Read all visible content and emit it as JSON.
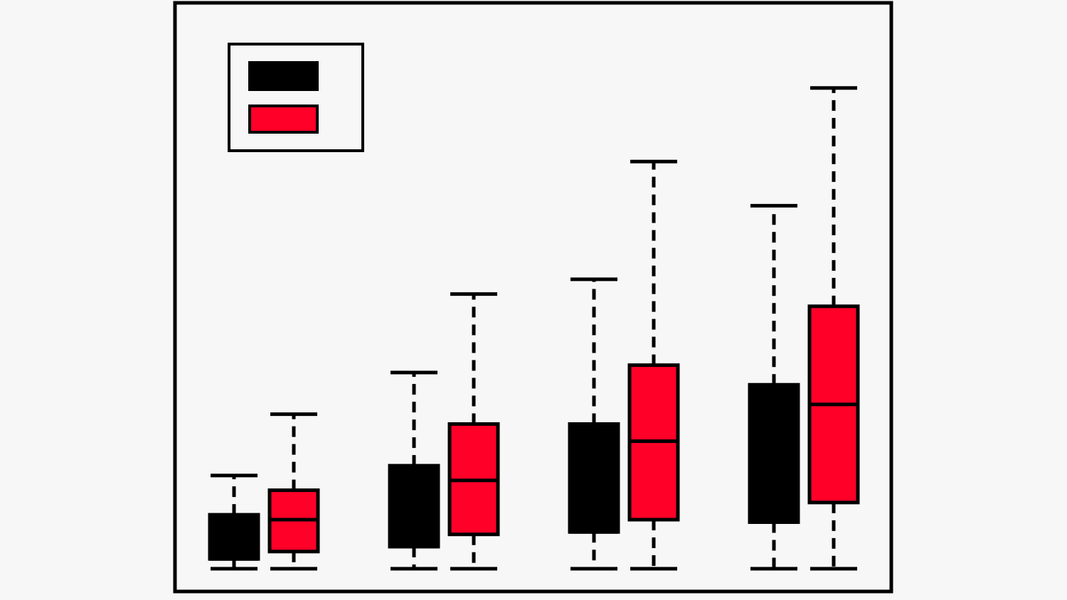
{
  "chart_data": {
    "type": "boxplot",
    "title": "",
    "xlabel": "",
    "ylabel": "",
    "grid": false,
    "legend_position": "top-left",
    "ylim": [
      0,
      100
    ],
    "categories": [
      "",
      "",
      "",
      ""
    ],
    "series": [
      {
        "color": "#000000",
        "fill": "#000000",
        "boxes": [
          {
            "whislo": 0,
            "q1": 2,
            "med": 2,
            "q3": 11,
            "whishi": 19
          },
          {
            "whislo": 0,
            "q1": 4.5,
            "med": 4.5,
            "q3": 21,
            "whishi": 40
          },
          {
            "whislo": 0,
            "q1": 7.5,
            "med": 7.5,
            "q3": 29.5,
            "whishi": 59
          },
          {
            "whislo": 0,
            "q1": 9.5,
            "med": 9.5,
            "q3": 37.5,
            "whishi": 74
          }
        ]
      },
      {
        "color": "#000000",
        "fill": "#ff0028",
        "boxes": [
          {
            "whislo": 0,
            "q1": 3.5,
            "med": 10,
            "q3": 16,
            "whishi": 31.5
          },
          {
            "whislo": 0,
            "q1": 7,
            "med": 18,
            "q3": 29.5,
            "whishi": 56
          }
        ]
      }
    ]
  }
}
